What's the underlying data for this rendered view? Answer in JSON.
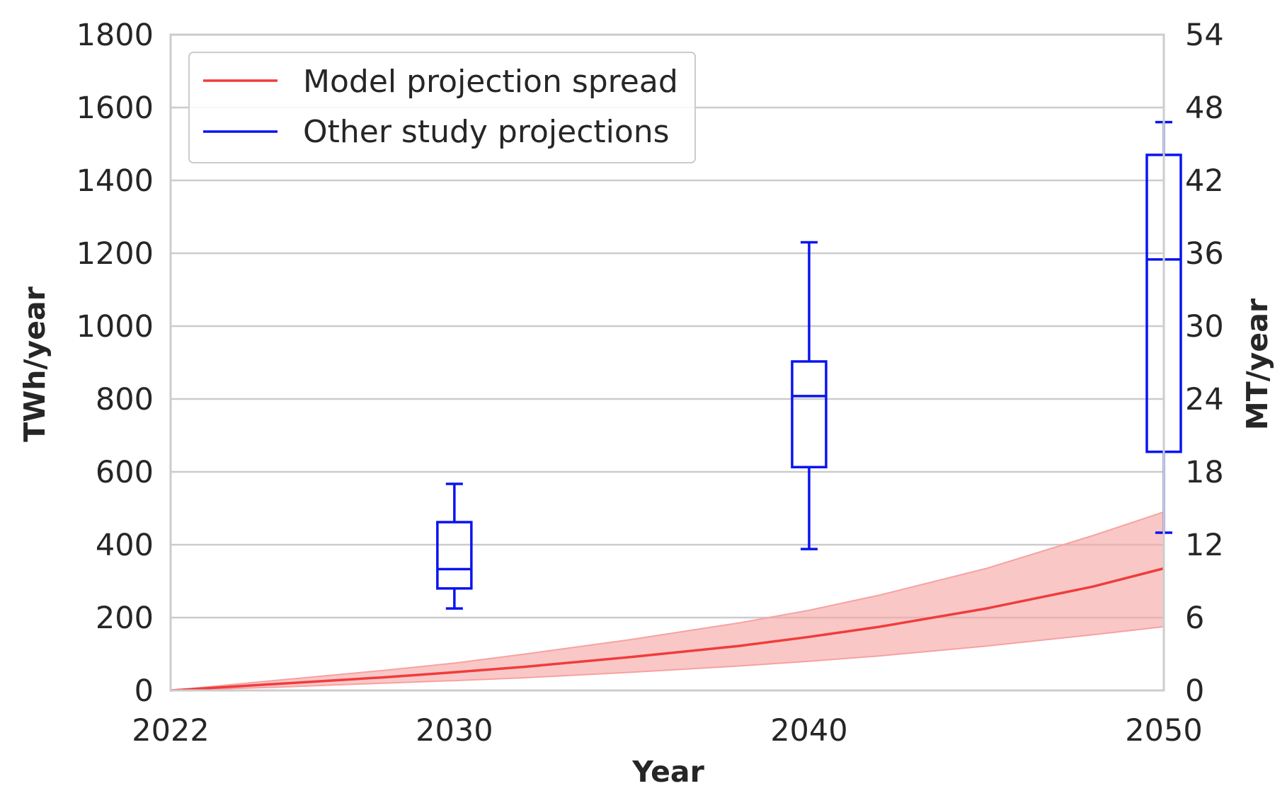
{
  "chart_data": {
    "type": "line",
    "title": "",
    "xlabel": "Year",
    "ylabel": "TWh/year",
    "y2label": "MT/year",
    "xlim": [
      2022,
      2050
    ],
    "ylim": [
      0,
      1800
    ],
    "y2lim": [
      0,
      54
    ],
    "x_ticks": [
      "2022",
      "2030",
      "2040",
      "2050"
    ],
    "y_ticks": [
      "0",
      "200",
      "400",
      "600",
      "800",
      "1000",
      "1200",
      "1400",
      "1600",
      "1800"
    ],
    "y2_ticks": [
      "0",
      "6",
      "12",
      "18",
      "24",
      "30",
      "36",
      "42",
      "48",
      "54"
    ],
    "grid": "horizontal",
    "legend_position": "top-left",
    "series": [
      {
        "name": "Model projection spread",
        "kind": "line-with-band",
        "color": "#f03c3c",
        "band_color": "#f7a1a1",
        "x": [
          2022,
          2025,
          2028,
          2030,
          2032,
          2035,
          2038,
          2040,
          2042,
          2045,
          2048,
          2050
        ],
        "y": [
          0,
          18,
          36,
          50,
          65,
          92,
          122,
          147,
          175,
          225,
          285,
          335
        ],
        "lower": [
          0,
          9,
          20,
          27,
          35,
          50,
          67,
          80,
          95,
          122,
          153,
          175
        ],
        "upper": [
          0,
          28,
          55,
          75,
          100,
          140,
          185,
          220,
          262,
          335,
          425,
          490
        ]
      },
      {
        "name": "Other study projections",
        "kind": "boxplot",
        "color": "#0a14f0",
        "boxes": [
          {
            "x": 2030,
            "whisker_low": 225,
            "q1": 280,
            "median": 333,
            "q3": 462,
            "whisker_high": 567
          },
          {
            "x": 2040,
            "whisker_low": 388,
            "q1": 613,
            "median": 808,
            "q3": 903,
            "whisker_high": 1230
          },
          {
            "x": 2050,
            "whisker_low": 433,
            "q1": 655,
            "median": 1183,
            "q3": 1470,
            "whisker_high": 1560
          }
        ]
      }
    ]
  }
}
